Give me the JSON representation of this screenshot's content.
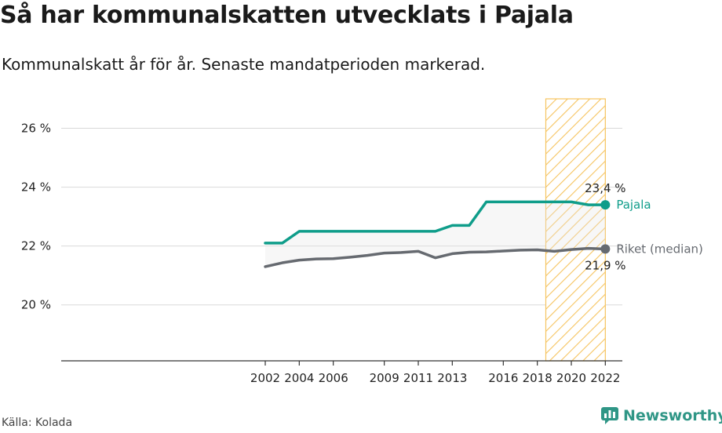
{
  "header": {
    "title": "Så har kommunalskatten utvecklats i Pajala",
    "subtitle": "Kommunalskatt år för år. Senaste mandatperioden markerad."
  },
  "footer": {
    "source": "Källa: Kolada",
    "brand": "Newsworthy"
  },
  "colors": {
    "pajala": "#0f9d8a",
    "riket": "#666a70",
    "highlight": "#f6c460",
    "grid": "#d9d9d9"
  },
  "chart_data": {
    "type": "line",
    "title": "Så har kommunalskatten utvecklats i Pajala",
    "subtitle": "Kommunalskatt år för år. Senaste mandatperioden markerad.",
    "xlabel": "",
    "ylabel": "",
    "x": [
      2002,
      2003,
      2004,
      2005,
      2006,
      2007,
      2008,
      2009,
      2010,
      2011,
      2012,
      2013,
      2014,
      2015,
      2016,
      2017,
      2018,
      2019,
      2020,
      2021,
      2022
    ],
    "xlim": [
      1990,
      2023
    ],
    "ylim": [
      18.1,
      27
    ],
    "yticks": [
      20,
      22,
      24,
      26
    ],
    "ytick_labels": [
      "20 %",
      "22 %",
      "24 %",
      "26 %"
    ],
    "xticks": [
      2002,
      2004,
      2006,
      2009,
      2011,
      2013,
      2016,
      2018,
      2020,
      2022
    ],
    "xtick_labels": [
      "2002",
      "2004",
      "2006",
      "2009",
      "2011",
      "2013",
      "2016",
      "2018",
      "2020",
      "2022"
    ],
    "highlight_period": {
      "from": 2018.5,
      "to": 2022,
      "label": "Senaste mandatperioden"
    },
    "series": [
      {
        "name": "Pajala",
        "values": [
          22.1,
          22.1,
          22.5,
          22.5,
          22.5,
          22.5,
          22.5,
          22.5,
          22.5,
          22.5,
          22.5,
          22.7,
          22.7,
          23.5,
          23.5,
          23.5,
          23.5,
          23.5,
          23.5,
          23.4,
          23.4
        ],
        "end_value_label": "23,4 %"
      },
      {
        "name": "Riket (median)",
        "values": [
          21.3,
          21.43,
          21.52,
          21.56,
          21.57,
          21.62,
          21.68,
          21.76,
          21.78,
          21.82,
          21.6,
          21.74,
          21.79,
          21.8,
          21.83,
          21.86,
          21.87,
          21.82,
          21.88,
          21.92,
          21.9
        ],
        "end_value_label": "21,9 %"
      }
    ],
    "grid": true,
    "legend": "inline-end-labels"
  }
}
